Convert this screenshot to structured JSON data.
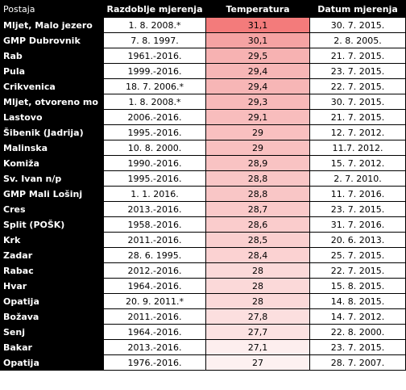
{
  "headers": [
    "Postaja",
    "Razdoblje mjerenja",
    "Temperatura",
    "Datum mjerenja"
  ],
  "rows": [
    {
      "station": "Mljet, Malo jezero",
      "period": "1. 8. 2008.*",
      "temp": "31,1",
      "date": "30. 7. 2015.",
      "color": "#f37b7b"
    },
    {
      "station": "GMP Dubrovnik",
      "period": "7. 8. 1997.",
      "temp": "30,1",
      "date": "2. 8. 2005.",
      "color": "#f5a3a3"
    },
    {
      "station": "Rab",
      "period": "1961.-2016.",
      "temp": "29,5",
      "date": "21. 7. 2015.",
      "color": "#f7b2b2"
    },
    {
      "station": "Pula",
      "period": "1999.-2016.",
      "temp": "29,4",
      "date": "23. 7. 2015.",
      "color": "#f7b6b6"
    },
    {
      "station": "Crikvenica",
      "period": "18. 7. 2006.*",
      "temp": "29,4",
      "date": "22. 7. 2015.",
      "color": "#f7b6b6"
    },
    {
      "station": "Mljet, otvoreno mo",
      "period": "1. 8. 2008.*",
      "temp": "29,3",
      "date": "30. 7. 2015.",
      "color": "#f8b9b9"
    },
    {
      "station": "Lastovo",
      "period": "2006.-2016.",
      "temp": "29,1",
      "date": "21. 7. 2015.",
      "color": "#f8bdbd"
    },
    {
      "station": "Šibenik (Jadrija)",
      "period": "1995.-2016.",
      "temp": "29",
      "date": "12. 7. 2012.",
      "color": "#f9c0c0"
    },
    {
      "station": "Malinska",
      "period": "10. 8. 2000.",
      "temp": "29",
      "date": "11.7. 2012.",
      "color": "#f9c0c0"
    },
    {
      "station": "Komiža",
      "period": "1990.-2016.",
      "temp": "28,9",
      "date": "15. 7. 2012.",
      "color": "#f9c3c3"
    },
    {
      "station": "Sv. Ivan n/p",
      "period": "1995.-2016.",
      "temp": "28,8",
      "date": "2. 7. 2010.",
      "color": "#f9c6c6"
    },
    {
      "station": "GMP Mali Lošinj",
      "period": "1. 1. 2016.",
      "temp": "28,8",
      "date": "11. 7. 2016.",
      "color": "#f9c6c6"
    },
    {
      "station": "Cres",
      "period": "2013.-2016.",
      "temp": "28,7",
      "date": "23. 7. 2015.",
      "color": "#fac9c9"
    },
    {
      "station": "Split (POŠK)",
      "period": "1958.-2016.",
      "temp": "28,6",
      "date": "31. 7. 2016.",
      "color": "#faccc c"
    },
    {
      "station": "Krk",
      "period": "2011.-2016.",
      "temp": "28,5",
      "date": "20. 6. 2013.",
      "color": "#facfcf"
    },
    {
      "station": "Zadar",
      "period": "28. 6. 1995.",
      "temp": "28,4",
      "date": "25. 7. 2015.",
      "color": "#fbd2d2"
    },
    {
      "station": "Rabac",
      "period": "2012.-2016.",
      "temp": "28",
      "date": "22. 7. 2015.",
      "color": "#fbd9d9"
    },
    {
      "station": "Hvar",
      "period": "1964.-2016.",
      "temp": "28",
      "date": "15. 8. 2015.",
      "color": "#fbd9d9"
    },
    {
      "station": "Opatija",
      "period": "20. 9. 2011.*",
      "temp": "28",
      "date": "14. 8. 2015.",
      "color": "#fbd9d9"
    },
    {
      "station": "Božava",
      "period": "2011.-2016.",
      "temp": "27,8",
      "date": "14. 7. 2012.",
      "color": "#fcdfdf"
    },
    {
      "station": "Senj",
      "period": "1964.-2016.",
      "temp": "27,7",
      "date": "22. 8. 2000.",
      "color": "#fce2e2"
    },
    {
      "station": "Bakar",
      "period": "2013.-2016.",
      "temp": "27,1",
      "date": "23. 7. 2015.",
      "color": "#fdeeee"
    },
    {
      "station": "Opatija",
      "period": "1976.-2016.",
      "temp": "27",
      "date": "28. 7. 2007.",
      "color": "#fdf1f1"
    }
  ]
}
